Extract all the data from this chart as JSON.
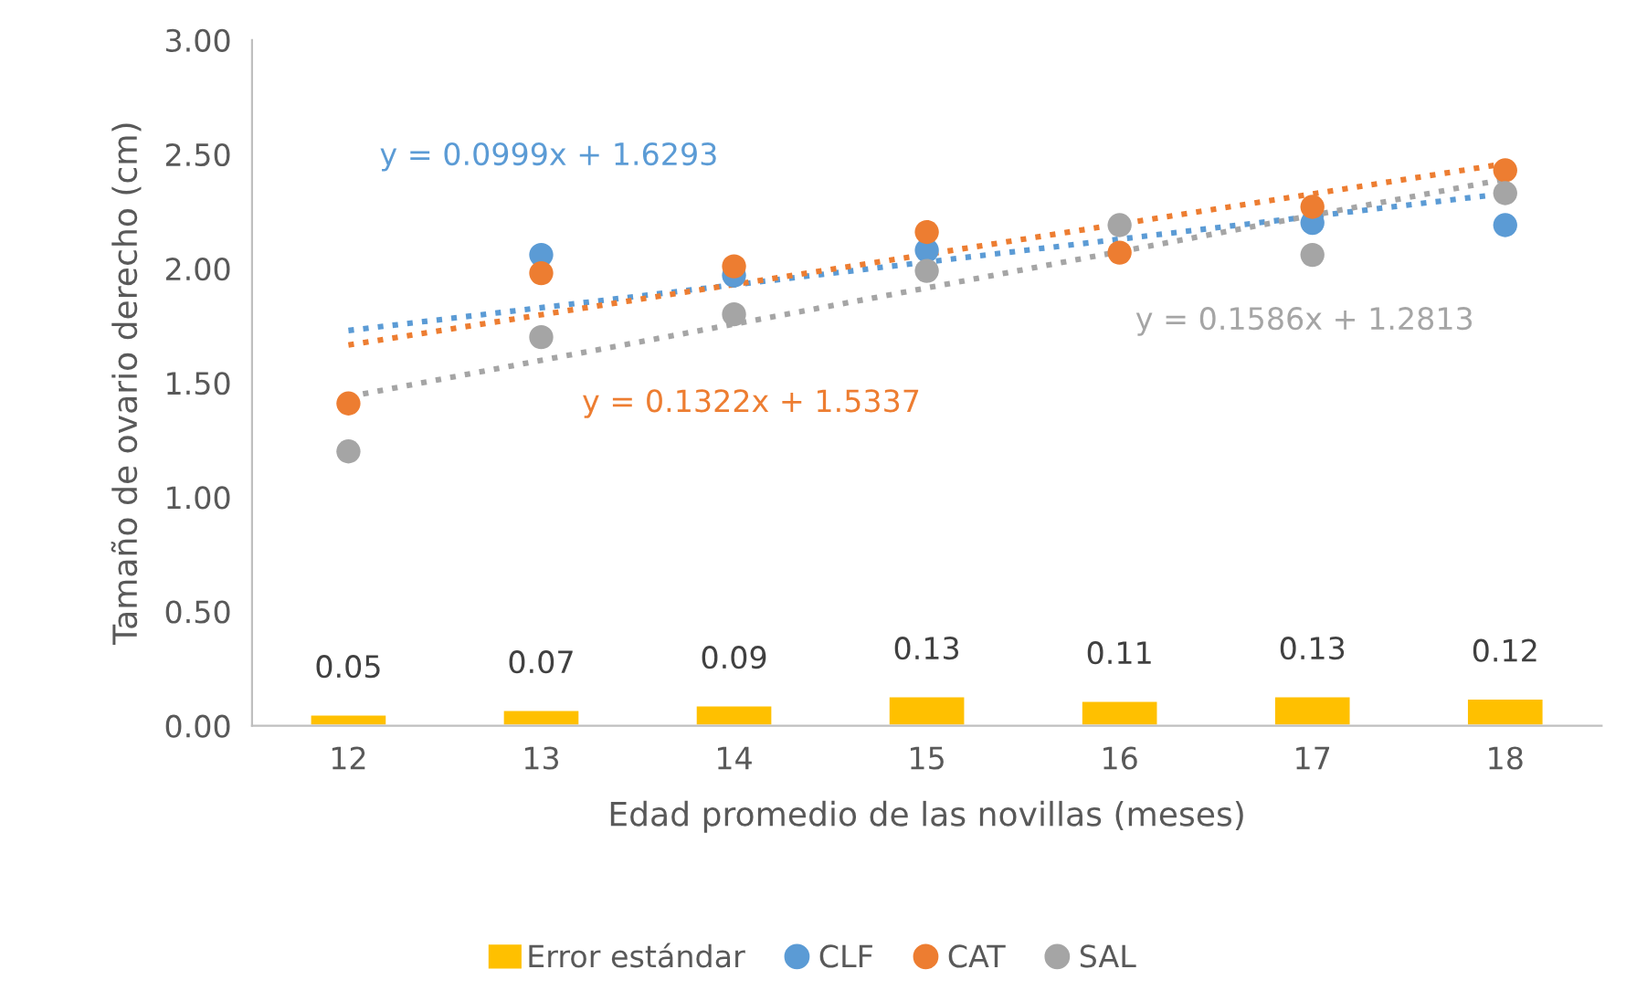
{
  "chart_data": {
    "type": "scatter",
    "xlabel": "Edad promedio de las novillas (meses)",
    "ylabel": "Tamaño de ovario derecho (cm)",
    "categories": [
      "12",
      "13",
      "14",
      "15",
      "16",
      "17",
      "18"
    ],
    "ylim": [
      0,
      3
    ],
    "yticks": [
      "0.00",
      "0.50",
      "1.00",
      "1.50",
      "2.00",
      "2.50",
      "3.00"
    ],
    "grid": false,
    "legend": "bottom",
    "marker": "circle",
    "series": [
      {
        "name": "Error estándar",
        "type": "bar",
        "color": "#ffc000",
        "values": [
          0.05,
          0.07,
          0.09,
          0.13,
          0.11,
          0.13,
          0.12
        ],
        "data_labels": true
      },
      {
        "name": "CLF",
        "color": "#5b9bd5",
        "values": [
          null,
          2.06,
          1.97,
          2.08,
          null,
          2.2,
          2.19
        ]
      },
      {
        "name": "CAT",
        "color": "#ed7d31",
        "values": [
          1.41,
          1.98,
          2.01,
          2.16,
          2.07,
          2.27,
          2.43
        ]
      },
      {
        "name": "SAL",
        "color": "#a5a5a5",
        "values": [
          1.2,
          1.7,
          1.8,
          1.99,
          2.19,
          2.06,
          2.33
        ]
      },
      {
        "type": "line",
        "line_style": "dotted",
        "marker": "none",
        "color": "#5b9bd5",
        "x": [
          "12",
          "18"
        ],
        "values": [
          1.7292,
          2.3286
        ]
      },
      {
        "type": "line",
        "line_style": "dotted",
        "marker": "none",
        "color": "#ed7d31",
        "x": [
          "12",
          "18"
        ],
        "values": [
          1.6659,
          2.4591
        ]
      },
      {
        "type": "line",
        "line_style": "dotted",
        "marker": "none",
        "color": "#a5a5a5",
        "x": [
          "12",
          "18"
        ],
        "values": [
          1.4399,
          2.3915
        ]
      }
    ],
    "annotations": [
      "y = 0.0999x + 1.6293",
      "y = 0.1322x + 1.5337",
      "y = 0.1586x + 1.2813"
    ]
  }
}
